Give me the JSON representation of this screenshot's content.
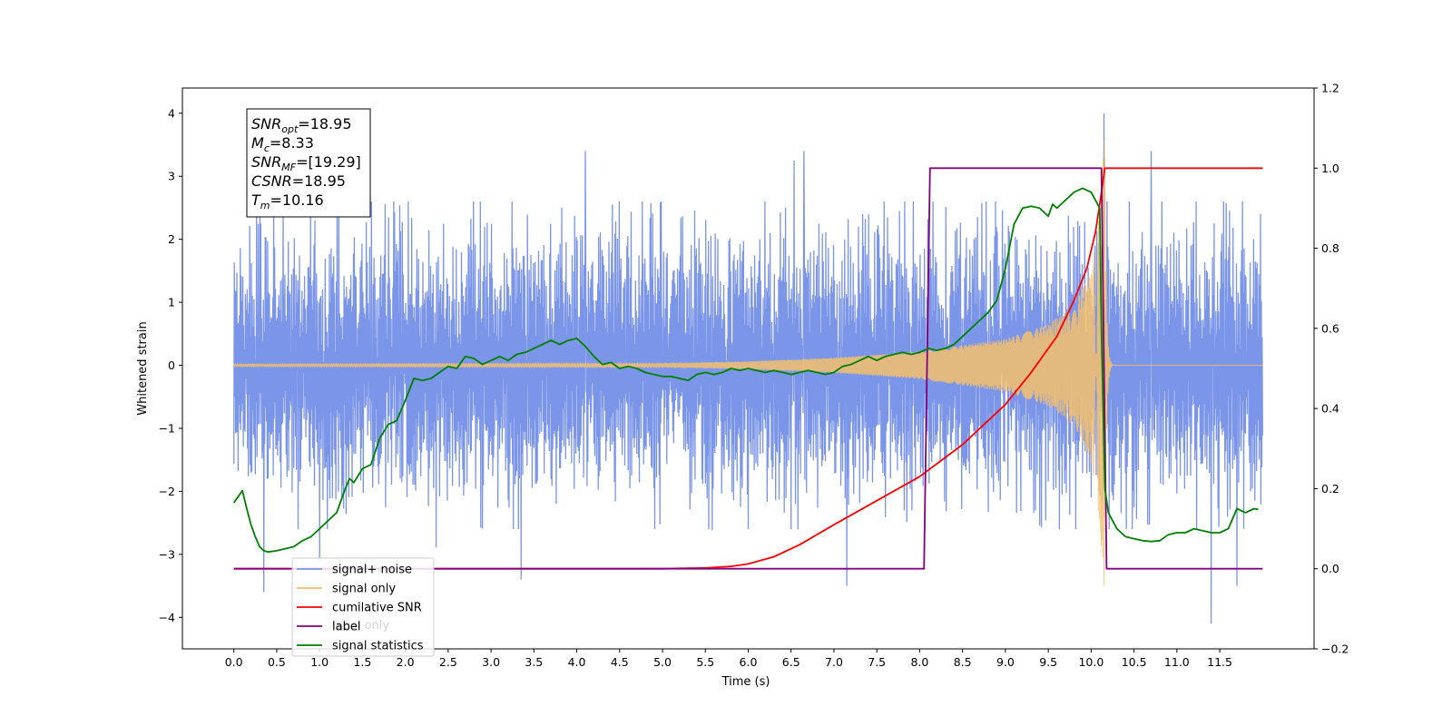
{
  "chart_data": {
    "type": "line",
    "xlabel": "Time (s)",
    "ylabel": "Whitened strain",
    "xlim": [
      -0.6,
      12.6
    ],
    "ylim": [
      -4.5,
      4.4
    ],
    "y2lim": [
      -0.2,
      1.2
    ],
    "grid": false,
    "legend_position": "lower-left",
    "x_ticks": [
      "0.0",
      "0.5",
      "1.0",
      "1.5",
      "2.0",
      "2.5",
      "3.0",
      "3.5",
      "4.0",
      "4.5",
      "5.0",
      "5.5",
      "6.0",
      "6.5",
      "7.0",
      "7.5",
      "8.0",
      "8.5",
      "9.0",
      "9.5",
      "10.0",
      "10.5",
      "11.0",
      "11.5"
    ],
    "y_ticks": [
      "−4",
      "−3",
      "−2",
      "−1",
      "0",
      "1",
      "2",
      "3",
      "4"
    ],
    "y2_ticks": [
      "−0.2",
      "0.0",
      "0.2",
      "0.4",
      "0.6",
      "0.8",
      "1.0",
      "1.2"
    ],
    "info_box": [
      {
        "var": "SNR",
        "sub": "opt",
        "value": "=18.95"
      },
      {
        "var": "M",
        "sub": "c",
        "value": "=8.33"
      },
      {
        "var": "SNR",
        "sub": "MF",
        "value": "=[19.29]"
      },
      {
        "var": "CSNR",
        "sub": "",
        "value": "=18.95"
      },
      {
        "var": "T",
        "sub": "m",
        "value": "=10.16"
      }
    ],
    "legend": [
      {
        "label": "signal+ noise",
        "color": "#7b95e8"
      },
      {
        "label": "signal only",
        "color": "#f5c16c"
      },
      {
        "label": "cumilative SNR",
        "color": "#ff0000"
      },
      {
        "label": "label",
        "color": "#800080"
      },
      {
        "label": "signal statistics",
        "color": "#008000"
      }
    ],
    "legend_hidden_label": "label only",
    "series": [
      {
        "name": "signal+ noise",
        "axis": "left",
        "color": "#7b95e8",
        "kind": "noise",
        "t_range": [
          0.0,
          12.0
        ],
        "amplitude_typical": [
          -2.2,
          2.4
        ],
        "peaks": [
          [
            0.35,
            -3.6
          ],
          [
            1.0,
            -3.1
          ],
          [
            4.1,
            3.4
          ],
          [
            3.35,
            -3.4
          ],
          [
            6.65,
            3.4
          ],
          [
            10.15,
            4.0
          ],
          [
            11.4,
            -4.1
          ],
          [
            10.7,
            3.4
          ],
          [
            11.7,
            -3.5
          ],
          [
            7.15,
            -3.5
          ]
        ]
      },
      {
        "name": "signal only",
        "axis": "left",
        "color": "#f5c16c",
        "kind": "chirp",
        "t_start": 0.0,
        "t_merge": 10.16,
        "t_end": 12.0,
        "envelope": [
          [
            0,
            0.02
          ],
          [
            5.0,
            0.03
          ],
          [
            6.0,
            0.06
          ],
          [
            7.0,
            0.12
          ],
          [
            8.0,
            0.22
          ],
          [
            9.0,
            0.42
          ],
          [
            9.5,
            0.65
          ],
          [
            9.8,
            0.95
          ],
          [
            10.0,
            1.5
          ],
          [
            10.1,
            2.5
          ],
          [
            10.16,
            3.8
          ]
        ]
      },
      {
        "name": "cumilative SNR",
        "axis": "right",
        "color": "#ff0000",
        "x": [
          0,
          5.0,
          5.5,
          5.8,
          6.0,
          6.3,
          6.6,
          7.0,
          7.5,
          8.0,
          8.5,
          9.0,
          9.3,
          9.6,
          9.8,
          9.95,
          10.05,
          10.1,
          10.16,
          10.17,
          12.0
        ],
        "y": [
          0,
          0,
          0.002,
          0.006,
          0.012,
          0.03,
          0.06,
          0.11,
          0.17,
          0.23,
          0.31,
          0.41,
          0.49,
          0.58,
          0.67,
          0.75,
          0.84,
          0.91,
          1.0,
          1.0,
          1.0
        ]
      },
      {
        "name": "label",
        "axis": "right",
        "color": "#800080",
        "x": [
          0,
          8.05,
          8.12,
          10.12,
          10.18,
          12.0
        ],
        "y": [
          0,
          0,
          1,
          1,
          0,
          0
        ]
      },
      {
        "name": "signal statistics",
        "axis": "right",
        "color": "#008000",
        "x": [
          0,
          0.05,
          0.1,
          0.15,
          0.2,
          0.25,
          0.3,
          0.35,
          0.4,
          0.5,
          0.6,
          0.7,
          0.8,
          0.9,
          1.0,
          1.1,
          1.2,
          1.3,
          1.35,
          1.4,
          1.5,
          1.6,
          1.7,
          1.8,
          1.9,
          2.0,
          2.1,
          2.2,
          2.3,
          2.4,
          2.5,
          2.6,
          2.7,
          2.8,
          2.9,
          3.0,
          3.1,
          3.2,
          3.3,
          3.4,
          3.5,
          3.6,
          3.7,
          3.8,
          3.9,
          4.0,
          4.1,
          4.2,
          4.3,
          4.4,
          4.5,
          4.6,
          4.7,
          4.8,
          4.9,
          5.0,
          5.1,
          5.2,
          5.3,
          5.4,
          5.5,
          5.6,
          5.7,
          5.8,
          5.9,
          6.0,
          6.1,
          6.2,
          6.3,
          6.4,
          6.5,
          6.6,
          6.7,
          6.8,
          6.9,
          7.0,
          7.1,
          7.2,
          7.3,
          7.4,
          7.5,
          7.6,
          7.7,
          7.8,
          7.9,
          8.0,
          8.1,
          8.2,
          8.3,
          8.4,
          8.5,
          8.6,
          8.7,
          8.8,
          8.9,
          9.0,
          9.1,
          9.2,
          9.3,
          9.4,
          9.5,
          9.55,
          9.6,
          9.7,
          9.8,
          9.9,
          10.0,
          10.05,
          10.1,
          10.12,
          10.16,
          10.2,
          10.3,
          10.4,
          10.5,
          10.6,
          10.7,
          10.8,
          10.9,
          11.0,
          11.1,
          11.2,
          11.3,
          11.4,
          11.5,
          11.6,
          11.7,
          11.8,
          11.9,
          11.95
        ],
        "y": [
          0.165,
          0.18,
          0.195,
          0.15,
          0.11,
          0.08,
          0.055,
          0.045,
          0.042,
          0.045,
          0.05,
          0.055,
          0.07,
          0.08,
          0.1,
          0.12,
          0.14,
          0.2,
          0.225,
          0.215,
          0.25,
          0.26,
          0.325,
          0.36,
          0.37,
          0.42,
          0.475,
          0.47,
          0.475,
          0.49,
          0.505,
          0.5,
          0.53,
          0.525,
          0.51,
          0.52,
          0.53,
          0.52,
          0.535,
          0.54,
          0.55,
          0.56,
          0.57,
          0.56,
          0.57,
          0.575,
          0.555,
          0.53,
          0.51,
          0.515,
          0.5,
          0.505,
          0.5,
          0.49,
          0.485,
          0.48,
          0.48,
          0.475,
          0.47,
          0.485,
          0.49,
          0.485,
          0.49,
          0.5,
          0.495,
          0.5,
          0.495,
          0.49,
          0.495,
          0.49,
          0.485,
          0.49,
          0.495,
          0.49,
          0.485,
          0.49,
          0.505,
          0.51,
          0.52,
          0.53,
          0.52,
          0.53,
          0.535,
          0.54,
          0.535,
          0.54,
          0.55,
          0.545,
          0.55,
          0.56,
          0.58,
          0.6,
          0.62,
          0.64,
          0.67,
          0.75,
          0.86,
          0.9,
          0.905,
          0.9,
          0.88,
          0.91,
          0.9,
          0.92,
          0.94,
          0.95,
          0.94,
          0.92,
          0.9,
          0.6,
          0.2,
          0.14,
          0.1,
          0.08,
          0.075,
          0.07,
          0.068,
          0.07,
          0.085,
          0.09,
          0.09,
          0.1,
          0.095,
          0.09,
          0.09,
          0.1,
          0.15,
          0.14,
          0.15,
          0.148
        ]
      }
    ]
  }
}
